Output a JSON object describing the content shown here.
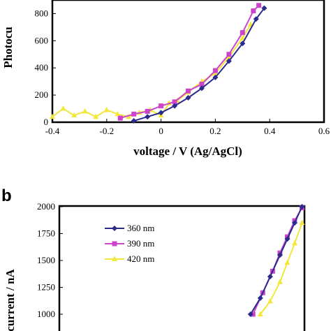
{
  "chart_data": [
    {
      "type": "line",
      "xlabel": "voltage   /  V (Ag/AgCl)",
      "ylabel": "Photocu",
      "xlim": [
        -0.4,
        0.6
      ],
      "ylim": [
        0,
        900
      ],
      "xticks": [
        "-0.4",
        "-0.2",
        "0",
        "0.2",
        "0.4",
        "0.6"
      ],
      "yticks": [
        "0",
        "200",
        "400",
        "600",
        "800"
      ],
      "series": [
        {
          "name": "360 nm",
          "color": "#2b2b8c",
          "marker": "diamond",
          "x": [
            -0.1,
            -0.05,
            0.0,
            0.05,
            0.1,
            0.15,
            0.2,
            0.25,
            0.3,
            0.35,
            0.38
          ],
          "y": [
            10,
            40,
            70,
            120,
            180,
            250,
            330,
            450,
            580,
            760,
            840
          ]
        },
        {
          "name": "390 nm",
          "color": "#cc44cc",
          "marker": "square",
          "x": [
            -0.15,
            -0.1,
            -0.05,
            0.0,
            0.05,
            0.1,
            0.15,
            0.2,
            0.25,
            0.3,
            0.34,
            0.36
          ],
          "y": [
            30,
            60,
            80,
            120,
            150,
            230,
            280,
            380,
            500,
            660,
            820,
            860
          ]
        },
        {
          "name": "420 nm",
          "color": "#f2e73a",
          "marker": "triangle",
          "x": [
            -0.4,
            -0.36,
            -0.32,
            -0.28,
            -0.24,
            -0.2,
            -0.16,
            -0.12,
            -0.08,
            -0.04,
            0.0,
            0.03,
            0.06,
            0.1,
            0.15,
            0.2,
            0.25,
            0.3,
            0.33
          ],
          "y": [
            40,
            100,
            50,
            80,
            40,
            90,
            60,
            40,
            70,
            90,
            50,
            140,
            160,
            220,
            300,
            360,
            480,
            620,
            720
          ]
        }
      ]
    },
    {
      "type": "line",
      "panel_label": "b",
      "ylabel": "current   /   nA",
      "ylim": [
        1000,
        2000
      ],
      "yticks": [
        "1000",
        "1250",
        "1500",
        "1750",
        "2000"
      ],
      "legend": "top-left",
      "series": [
        {
          "name": "360 nm",
          "color": "#2b2b8c",
          "marker": "diamond",
          "xf": [
            0.78,
            0.82,
            0.86,
            0.9,
            0.93,
            0.96,
            0.99
          ],
          "y": [
            1000,
            1150,
            1350,
            1550,
            1700,
            1850,
            2000
          ]
        },
        {
          "name": "390 nm",
          "color": "#cc44cc",
          "marker": "square",
          "xf": [
            0.79,
            0.83,
            0.87,
            0.9,
            0.93,
            0.96,
            0.99
          ],
          "y": [
            1000,
            1200,
            1400,
            1570,
            1720,
            1870,
            1990
          ]
        },
        {
          "name": "420 nm",
          "color": "#f2e73a",
          "marker": "triangle",
          "xf": [
            0.82,
            0.86,
            0.9,
            0.93,
            0.96,
            0.99
          ],
          "y": [
            1000,
            1120,
            1300,
            1480,
            1660,
            1850
          ]
        }
      ]
    }
  ]
}
